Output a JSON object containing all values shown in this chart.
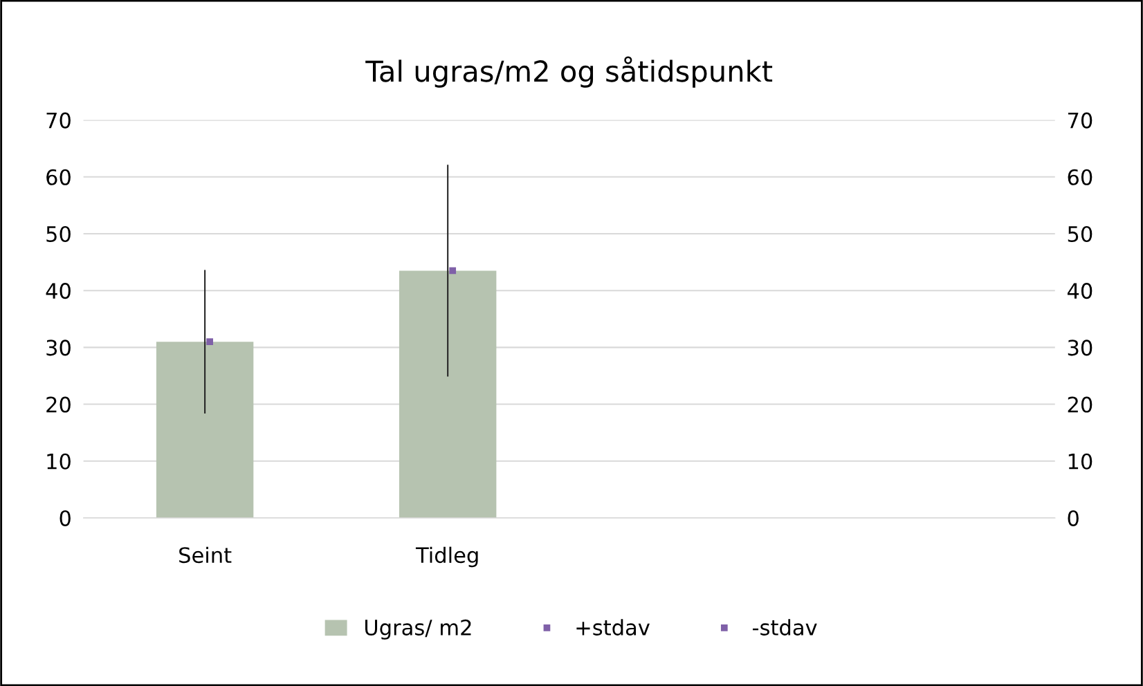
{
  "chart_data": {
    "type": "bar",
    "title": "Tal ugras/m2 og såtidspunkt",
    "categories": [
      "Seint",
      "Tidleg",
      null,
      null
    ],
    "series": [
      {
        "name": "Ugras/ m2",
        "color": "#b6c3b0",
        "values": [
          31,
          43.5,
          null,
          null
        ],
        "errors": [
          12.5,
          18.5,
          null,
          null
        ]
      },
      {
        "name": "+stdav",
        "type": "scatter",
        "color": "#7f60a8",
        "marker": "square",
        "values": [
          31,
          43.5,
          null,
          null
        ]
      },
      {
        "name": "-stdav",
        "type": "scatter",
        "color": "#7f60a8",
        "values": [
          null,
          null,
          null,
          null
        ]
      }
    ],
    "ylim": [
      0,
      70
    ],
    "yticks": [
      0,
      10,
      20,
      30,
      40,
      50,
      60,
      70
    ],
    "y2lim": [
      0,
      70
    ],
    "y2ticks": [
      0,
      10,
      20,
      30,
      40,
      50,
      60,
      70
    ],
    "grid": "y",
    "legend": "bottom"
  }
}
